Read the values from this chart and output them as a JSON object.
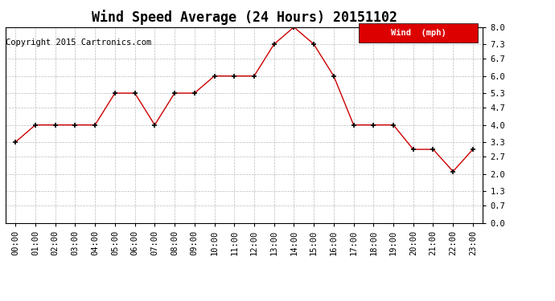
{
  "title": "Wind Speed Average (24 Hours) 20151102",
  "copyright_text": "Copyright 2015 Cartronics.com",
  "x_labels": [
    "00:00",
    "01:00",
    "02:00",
    "03:00",
    "04:00",
    "05:00",
    "06:00",
    "07:00",
    "08:00",
    "09:00",
    "10:00",
    "11:00",
    "12:00",
    "13:00",
    "14:00",
    "15:00",
    "16:00",
    "17:00",
    "18:00",
    "19:00",
    "20:00",
    "21:00",
    "22:00",
    "23:00"
  ],
  "y_values": [
    3.3,
    4.0,
    4.0,
    4.0,
    4.0,
    5.3,
    5.3,
    4.0,
    5.3,
    5.3,
    6.0,
    6.0,
    6.0,
    7.3,
    8.0,
    7.3,
    6.0,
    4.0,
    4.0,
    4.0,
    3.0,
    3.0,
    2.1,
    3.0
  ],
  "y_ticks": [
    0.0,
    0.7,
    1.3,
    2.0,
    2.7,
    3.3,
    4.0,
    4.7,
    5.3,
    6.0,
    6.7,
    7.3,
    8.0
  ],
  "y_tick_labels": [
    "0.0",
    "0.7",
    "1.3",
    "2.0",
    "2.7",
    "3.3",
    "4.0",
    "4.7",
    "5.3",
    "6.0",
    "6.7",
    "7.3",
    "8.0"
  ],
  "line_color": "#cc0000",
  "marker_color": "#000000",
  "background_color": "#ffffff",
  "grid_color": "#bbbbbb",
  "legend_label": "Wind  (mph)",
  "legend_bg": "#dd0000",
  "legend_text_color": "#ffffff",
  "title_fontsize": 12,
  "copyright_fontsize": 7.5,
  "tick_fontsize": 7.5,
  "ylim": [
    0.0,
    8.0
  ],
  "figsize": [
    6.9,
    3.75
  ],
  "dpi": 100
}
